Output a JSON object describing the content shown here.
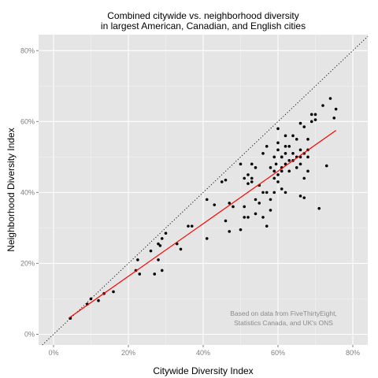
{
  "chart_data": {
    "type": "scatter",
    "title": [
      "Combined citywide vs. neighborhood diversity",
      "in largest American, Canadian, and English cities"
    ],
    "xlabel": "Citywide Diversity Index",
    "ylabel": "Neighborhood Diversity Index",
    "xlim": [
      -0.04,
      0.84
    ],
    "ylim": [
      -0.03,
      0.845
    ],
    "x_ticks": [
      0,
      0.2,
      0.4,
      0.6,
      0.8
    ],
    "y_ticks": [
      0,
      0.2,
      0.4,
      0.6,
      0.8
    ],
    "x_tick_labels": [
      "0%",
      "20%",
      "40%",
      "60%",
      "80%"
    ],
    "y_tick_labels": [
      "0%",
      "20%",
      "40%",
      "60%",
      "80%"
    ],
    "grid": true,
    "annotation": [
      "Based on data from FiveThirtyEight,",
      "Statistics Canada, and UK's ONS"
    ],
    "reference_line": {
      "style": "dotted",
      "color": "#000000",
      "equation": "y = x"
    },
    "fit_line": {
      "color": "#ff0000",
      "x": [
        0.04,
        0.755
      ],
      "y": [
        0.045,
        0.575
      ]
    },
    "points": {
      "x": [
        0.045,
        0.09,
        0.1,
        0.12,
        0.135,
        0.16,
        0.22,
        0.225,
        0.23,
        0.26,
        0.27,
        0.28,
        0.28,
        0.285,
        0.29,
        0.29,
        0.3,
        0.33,
        0.34,
        0.36,
        0.37,
        0.41,
        0.41,
        0.43,
        0.45,
        0.46,
        0.46,
        0.47,
        0.47,
        0.48,
        0.5,
        0.5,
        0.51,
        0.51,
        0.51,
        0.52,
        0.52,
        0.52,
        0.53,
        0.53,
        0.53,
        0.54,
        0.54,
        0.54,
        0.55,
        0.55,
        0.56,
        0.56,
        0.56,
        0.57,
        0.57,
        0.57,
        0.58,
        0.58,
        0.58,
        0.59,
        0.59,
        0.59,
        0.59,
        0.595,
        0.6,
        0.6,
        0.6,
        0.6,
        0.6,
        0.61,
        0.61,
        0.61,
        0.61,
        0.61,
        0.62,
        0.62,
        0.62,
        0.62,
        0.62,
        0.63,
        0.63,
        0.63,
        0.64,
        0.64,
        0.64,
        0.65,
        0.65,
        0.65,
        0.66,
        0.66,
        0.66,
        0.66,
        0.66,
        0.67,
        0.67,
        0.67,
        0.67,
        0.68,
        0.68,
        0.68,
        0.68,
        0.69,
        0.69,
        0.7,
        0.7,
        0.71,
        0.72,
        0.73,
        0.74,
        0.75,
        0.755
      ],
      "y": [
        0.045,
        0.085,
        0.1,
        0.095,
        0.115,
        0.12,
        0.18,
        0.21,
        0.17,
        0.235,
        0.17,
        0.21,
        0.255,
        0.25,
        0.27,
        0.18,
        0.285,
        0.255,
        0.24,
        0.305,
        0.305,
        0.38,
        0.27,
        0.365,
        0.43,
        0.435,
        0.32,
        0.37,
        0.29,
        0.36,
        0.48,
        0.295,
        0.33,
        0.36,
        0.44,
        0.45,
        0.425,
        0.33,
        0.43,
        0.44,
        0.48,
        0.47,
        0.38,
        0.34,
        0.42,
        0.37,
        0.33,
        0.4,
        0.51,
        0.53,
        0.305,
        0.4,
        0.47,
        0.35,
        0.38,
        0.44,
        0.5,
        0.46,
        0.4,
        0.48,
        0.52,
        0.54,
        0.58,
        0.45,
        0.43,
        0.5,
        0.47,
        0.46,
        0.5,
        0.41,
        0.53,
        0.56,
        0.4,
        0.48,
        0.51,
        0.49,
        0.53,
        0.46,
        0.56,
        0.49,
        0.51,
        0.5,
        0.47,
        0.55,
        0.595,
        0.48,
        0.52,
        0.39,
        0.5,
        0.585,
        0.51,
        0.44,
        0.385,
        0.46,
        0.5,
        0.55,
        0.52,
        0.62,
        0.6,
        0.62,
        0.605,
        0.355,
        0.645,
        0.475,
        0.665,
        0.61,
        0.635
      ]
    }
  }
}
